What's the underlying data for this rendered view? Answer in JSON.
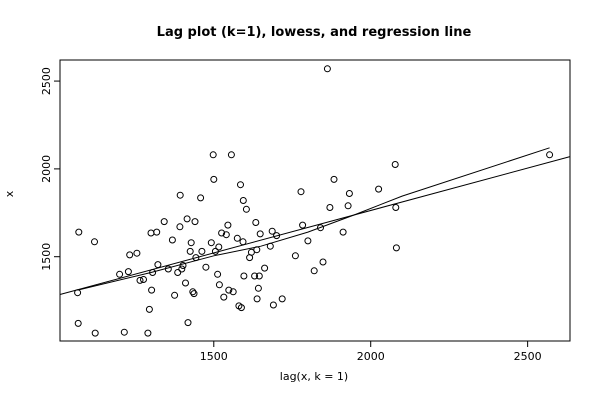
{
  "chart_data": {
    "type": "scatter",
    "title": "Lag plot (k=1), lowess, and regression line",
    "xlabel": "lag(x, k = 1)",
    "ylabel": "x",
    "xlim": [
      1010,
      2635
    ],
    "ylim": [
      1020,
      2620
    ],
    "xticks": [
      1500,
      2000,
      2500
    ],
    "yticks": [
      1500,
      2000,
      2500
    ],
    "grid": false,
    "points": [
      [
        1068,
        1120
      ],
      [
        1066,
        1295
      ],
      [
        1070,
        1640
      ],
      [
        1120,
        1585
      ],
      [
        1122,
        1065
      ],
      [
        1200,
        1400
      ],
      [
        1215,
        1070
      ],
      [
        1228,
        1415
      ],
      [
        1232,
        1510
      ],
      [
        1255,
        1520
      ],
      [
        1265,
        1365
      ],
      [
        1276,
        1370
      ],
      [
        1290,
        1065
      ],
      [
        1295,
        1200
      ],
      [
        1300,
        1635
      ],
      [
        1302,
        1310
      ],
      [
        1305,
        1410
      ],
      [
        1318,
        1640
      ],
      [
        1322,
        1455
      ],
      [
        1342,
        1700
      ],
      [
        1355,
        1430
      ],
      [
        1368,
        1595
      ],
      [
        1375,
        1280
      ],
      [
        1385,
        1410
      ],
      [
        1392,
        1670
      ],
      [
        1393,
        1850
      ],
      [
        1398,
        1430
      ],
      [
        1402,
        1450
      ],
      [
        1410,
        1350
      ],
      [
        1415,
        1715
      ],
      [
        1418,
        1125
      ],
      [
        1425,
        1530
      ],
      [
        1428,
        1580
      ],
      [
        1433,
        1300
      ],
      [
        1437,
        1290
      ],
      [
        1440,
        1700
      ],
      [
        1443,
        1495
      ],
      [
        1458,
        1835
      ],
      [
        1462,
        1530
      ],
      [
        1475,
        1440
      ],
      [
        1492,
        1580
      ],
      [
        1498,
        2080
      ],
      [
        1500,
        1940
      ],
      [
        1505,
        1530
      ],
      [
        1512,
        1400
      ],
      [
        1516,
        1555
      ],
      [
        1518,
        1340
      ],
      [
        1525,
        1635
      ],
      [
        1532,
        1270
      ],
      [
        1540,
        1625
      ],
      [
        1545,
        1680
      ],
      [
        1548,
        1310
      ],
      [
        1556,
        2080
      ],
      [
        1562,
        1300
      ],
      [
        1575,
        1605
      ],
      [
        1580,
        1220
      ],
      [
        1585,
        1910
      ],
      [
        1588,
        1210
      ],
      [
        1593,
        1585
      ],
      [
        1594,
        1820
      ],
      [
        1596,
        1390
      ],
      [
        1604,
        1770
      ],
      [
        1614,
        1495
      ],
      [
        1620,
        1525
      ],
      [
        1630,
        1390
      ],
      [
        1634,
        1695
      ],
      [
        1637,
        1540
      ],
      [
        1638,
        1260
      ],
      [
        1642,
        1320
      ],
      [
        1645,
        1390
      ],
      [
        1648,
        1630
      ],
      [
        1662,
        1435
      ],
      [
        1680,
        1560
      ],
      [
        1686,
        1645
      ],
      [
        1690,
        1225
      ],
      [
        1700,
        1620
      ],
      [
        1718,
        1260
      ],
      [
        1760,
        1505
      ],
      [
        1778,
        1870
      ],
      [
        1783,
        1680
      ],
      [
        1800,
        1590
      ],
      [
        1820,
        1420
      ],
      [
        1840,
        1665
      ],
      [
        1848,
        1470
      ],
      [
        1862,
        2570
      ],
      [
        1870,
        1780
      ],
      [
        1883,
        1940
      ],
      [
        1912,
        1640
      ],
      [
        1928,
        1790
      ],
      [
        1932,
        1860
      ],
      [
        2025,
        1885
      ],
      [
        2078,
        2025
      ],
      [
        2080,
        1780
      ],
      [
        2082,
        1550
      ],
      [
        2570,
        2080
      ]
    ],
    "lines": [
      {
        "kind": "regression",
        "points": [
          [
            1010,
            1285
          ],
          [
            2635,
            2070
          ]
        ]
      },
      {
        "kind": "lowess",
        "points": [
          [
            1066,
            1310
          ],
          [
            1300,
            1410
          ],
          [
            1500,
            1505
          ],
          [
            1650,
            1560
          ],
          [
            1800,
            1640
          ],
          [
            1950,
            1740
          ],
          [
            2100,
            1845
          ],
          [
            2570,
            2120
          ]
        ]
      }
    ]
  }
}
